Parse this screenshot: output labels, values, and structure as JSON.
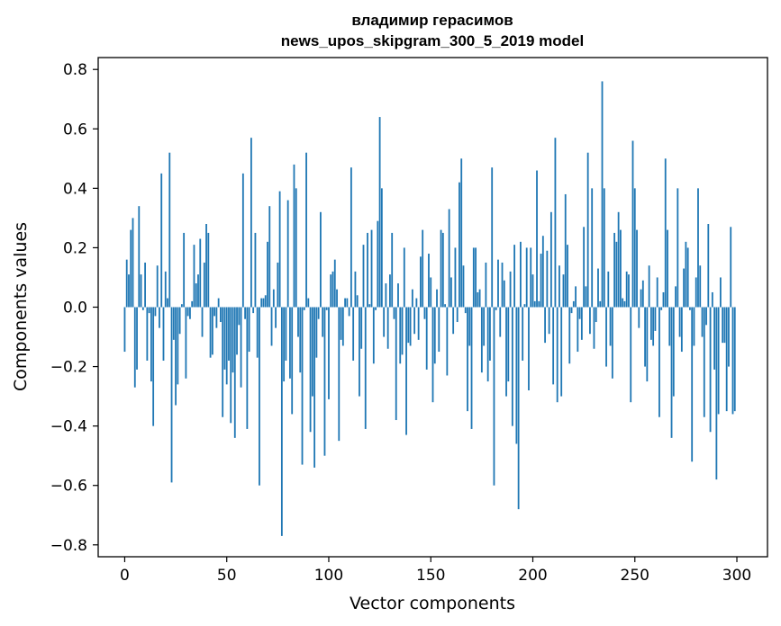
{
  "chart_data": {
    "type": "bar",
    "title_line1": "владимир герасимов",
    "title_line2": "news_upos_skipgram_300_5_2019 model",
    "xlabel": "Vector components",
    "ylabel": "Components values",
    "xlim": [
      -13,
      315
    ],
    "ylim": [
      -0.84,
      0.84
    ],
    "xticks": [
      0,
      50,
      100,
      150,
      200,
      250,
      300
    ],
    "xtick_labels": [
      "0",
      "50",
      "100",
      "150",
      "200",
      "250",
      "300"
    ],
    "yticks": [
      -0.8,
      -0.6,
      -0.4,
      -0.2,
      0.0,
      0.2,
      0.4,
      0.6,
      0.8
    ],
    "ytick_labels": [
      "−0.8",
      "−0.6",
      "−0.4",
      "−0.2",
      "0.0",
      "0.2",
      "0.4",
      "0.6",
      "0.8"
    ],
    "bar_color": "#1f77b4",
    "values": [
      -0.15,
      0.16,
      0.11,
      0.26,
      0.3,
      -0.27,
      -0.21,
      0.34,
      0.11,
      -0.01,
      0.15,
      -0.18,
      -0.02,
      -0.25,
      -0.4,
      -0.03,
      0.14,
      -0.07,
      0.45,
      -0.18,
      0.12,
      0.03,
      0.52,
      -0.59,
      -0.11,
      -0.33,
      -0.26,
      -0.09,
      0.01,
      0.25,
      -0.24,
      -0.03,
      -0.04,
      0.02,
      0.21,
      0.08,
      0.11,
      0.23,
      -0.1,
      0.15,
      0.28,
      0.25,
      -0.17,
      -0.16,
      -0.03,
      -0.07,
      0.03,
      -0.05,
      -0.37,
      -0.21,
      -0.26,
      -0.18,
      -0.39,
      -0.22,
      -0.44,
      -0.16,
      -0.06,
      -0.27,
      0.45,
      -0.04,
      -0.41,
      -0.15,
      0.57,
      -0.02,
      0.25,
      -0.17,
      -0.6,
      0.03,
      0.03,
      0.04,
      0.22,
      0.34,
      -0.13,
      0.06,
      -0.07,
      0.15,
      0.39,
      -0.77,
      -0.25,
      -0.18,
      0.36,
      -0.24,
      -0.36,
      0.48,
      0.4,
      -0.1,
      -0.22,
      -0.53,
      -0.01,
      0.52,
      0.03,
      -0.42,
      -0.3,
      -0.54,
      -0.17,
      -0.04,
      0.32,
      -0.1,
      -0.5,
      -0.01,
      -0.31,
      0.11,
      0.12,
      0.16,
      0.06,
      -0.45,
      -0.11,
      -0.13,
      0.03,
      0.03,
      -0.03,
      0.47,
      -0.18,
      0.12,
      0.04,
      -0.3,
      -0.14,
      0.21,
      -0.41,
      0.25,
      0.01,
      0.26,
      -0.19,
      -0.01,
      0.29,
      0.64,
      0.4,
      -0.1,
      0.08,
      -0.14,
      0.11,
      0.25,
      -0.04,
      -0.38,
      0.08,
      -0.19,
      -0.16,
      0.2,
      -0.43,
      -0.12,
      -0.13,
      0.06,
      -0.09,
      0.03,
      -0.11,
      0.17,
      0.26,
      -0.04,
      -0.21,
      0.18,
      0.1,
      -0.32,
      -0.19,
      0.06,
      -0.15,
      0.26,
      0.25,
      0.01,
      -0.23,
      0.33,
      0.1,
      -0.09,
      0.2,
      -0.05,
      0.42,
      0.5,
      0.14,
      -0.02,
      -0.35,
      -0.13,
      -0.41,
      0.2,
      0.2,
      0.05,
      0.06,
      -0.22,
      -0.13,
      0.15,
      -0.25,
      -0.18,
      0.47,
      -0.6,
      -0.01,
      0.16,
      -0.1,
      0.15,
      0.09,
      -0.3,
      -0.25,
      0.12,
      -0.4,
      0.21,
      -0.46,
      -0.68,
      0.22,
      -0.18,
      0.01,
      0.2,
      -0.28,
      0.2,
      0.11,
      0.02,
      0.46,
      0.02,
      0.18,
      0.24,
      -0.12,
      0.19,
      -0.09,
      0.32,
      -0.26,
      0.57,
      -0.32,
      0.14,
      -0.3,
      0.11,
      0.38,
      0.21,
      -0.19,
      -0.02,
      0.02,
      0.07,
      -0.15,
      -0.04,
      -0.11,
      0.27,
      0.07,
      0.52,
      -0.09,
      0.4,
      -0.14,
      -0.05,
      0.13,
      0.02,
      0.76,
      0.4,
      -0.2,
      0.12,
      -0.13,
      -0.24,
      0.25,
      0.22,
      0.32,
      0.26,
      0.03,
      0.02,
      0.12,
      0.11,
      -0.32,
      0.56,
      0.4,
      0.26,
      -0.07,
      0.06,
      0.09,
      -0.2,
      -0.25,
      0.14,
      -0.11,
      -0.13,
      -0.08,
      0.1,
      -0.37,
      -0.01,
      0.05,
      0.5,
      0.26,
      -0.13,
      -0.44,
      -0.3,
      0.07,
      0.4,
      -0.1,
      -0.15,
      0.13,
      0.22,
      0.2,
      -0.01,
      -0.52,
      -0.13,
      0.1,
      0.4,
      0.14,
      -0.1,
      -0.37,
      -0.06,
      0.28,
      -0.42,
      0.05,
      -0.21,
      -0.58,
      -0.36,
      0.1,
      -0.12,
      -0.12,
      -0.35,
      -0.2,
      0.27,
      -0.36,
      -0.35
    ]
  }
}
